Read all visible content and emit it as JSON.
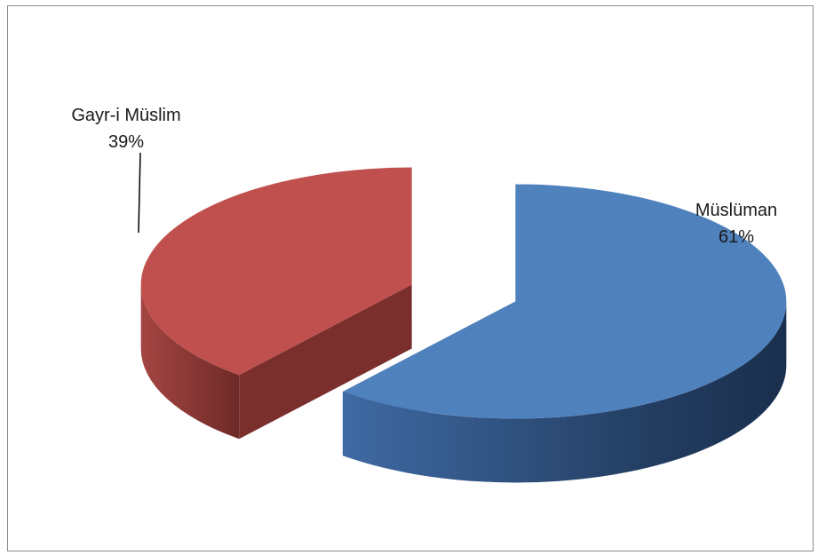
{
  "chart_data": {
    "type": "pie",
    "style": "3d-exploded",
    "slices": [
      {
        "name": "Müslüman",
        "value": 61,
        "label": "Müslüman",
        "percent_label": "61%",
        "color": "#4f81bd",
        "side_color": "#2f4f76"
      },
      {
        "name": "Gayr-i Müslim",
        "value": 39,
        "label": "Gayr-i Müslim",
        "percent_label": "39%",
        "color": "#c0504d",
        "side_color": "#7a2f2d"
      }
    ],
    "legend": "none"
  }
}
